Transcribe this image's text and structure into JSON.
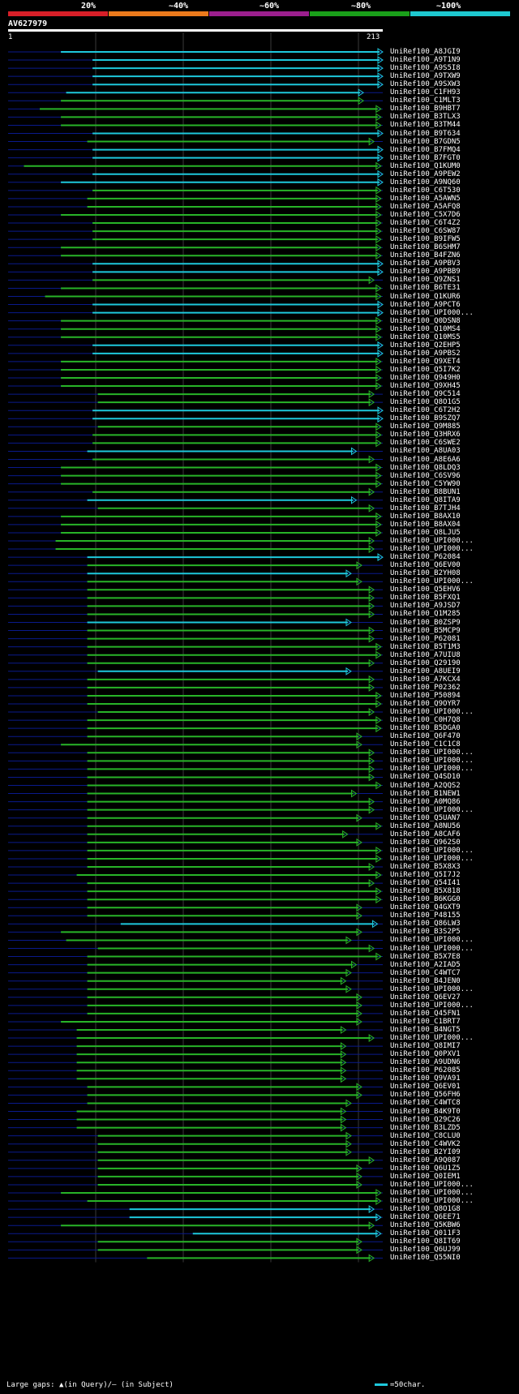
{
  "scale": {
    "labels": [
      "20%",
      "~40%",
      "~60%",
      "~80%",
      "~100%"
    ],
    "colors": [
      "#d81f28",
      "#ec7a1c",
      "#9c1f8e",
      "#1aa01a",
      "#1ec8d0"
    ]
  },
  "query": {
    "id": "AV627979",
    "start": "1",
    "end": "213"
  },
  "colors": {
    "cyan": "#1ec8dc",
    "green": "#28b428",
    "navy": "#0a1a8c",
    "grid": "#3a3a3a"
  },
  "legend": {
    "left": "Large gaps: ▲(in Query)/— (in Subject)",
    "right": "=50char."
  },
  "hits": [
    {
      "label": "UniRef100_A8JGI9",
      "color": "cyan",
      "start": 30,
      "end": 213
    },
    {
      "label": "UniRef100_A9T1N9",
      "color": "cyan",
      "start": 48,
      "end": 213
    },
    {
      "label": "UniRef100_A9S5I8",
      "color": "cyan",
      "start": 48,
      "end": 213
    },
    {
      "label": "UniRef100_A9TXW9",
      "color": "cyan",
      "start": 48,
      "end": 213
    },
    {
      "label": "UniRef100_A9SXW3",
      "color": "cyan",
      "start": 48,
      "end": 213
    },
    {
      "label": "UniRef100_C1FH93",
      "color": "cyan",
      "start": 33,
      "end": 202
    },
    {
      "label": "UniRef100_C1MLT3",
      "color": "green",
      "start": 30,
      "end": 202
    },
    {
      "label": "UniRef100_B9HBT7",
      "color": "green",
      "start": 18,
      "end": 212
    },
    {
      "label": "UniRef100_B3TLX3",
      "color": "green",
      "start": 30,
      "end": 212
    },
    {
      "label": "UniRef100_B3TM44",
      "color": "green",
      "start": 30,
      "end": 212
    },
    {
      "label": "UniRef100_B9T634",
      "color": "cyan",
      "start": 48,
      "end": 213
    },
    {
      "label": "UniRef100_B7GDN5",
      "color": "green",
      "start": 45,
      "end": 208
    },
    {
      "label": "UniRef100_B7FMQ4",
      "color": "cyan",
      "start": 48,
      "end": 213
    },
    {
      "label": "UniRef100_B7FGT0",
      "color": "cyan",
      "start": 48,
      "end": 213
    },
    {
      "label": "UniRef100_Q1KUM0",
      "color": "green",
      "start": 9,
      "end": 212
    },
    {
      "label": "UniRef100_A9PEW2",
      "color": "cyan",
      "start": 48,
      "end": 213
    },
    {
      "label": "UniRef100_A9NQ60",
      "color": "cyan",
      "start": 30,
      "end": 213
    },
    {
      "label": "UniRef100_C6T530",
      "color": "green",
      "start": 48,
      "end": 212
    },
    {
      "label": "UniRef100_A5AWN5",
      "color": "green",
      "start": 45,
      "end": 212
    },
    {
      "label": "UniRef100_A5AFQ8",
      "color": "green",
      "start": 45,
      "end": 212
    },
    {
      "label": "UniRef100_C5X7D6",
      "color": "green",
      "start": 30,
      "end": 212
    },
    {
      "label": "UniRef100_C6T4Z2",
      "color": "green",
      "start": 48,
      "end": 212
    },
    {
      "label": "UniRef100_C6SW87",
      "color": "green",
      "start": 48,
      "end": 212
    },
    {
      "label": "UniRef100_B9IFW5",
      "color": "green",
      "start": 48,
      "end": 212
    },
    {
      "label": "UniRef100_B6SHM7",
      "color": "green",
      "start": 30,
      "end": 212
    },
    {
      "label": "UniRef100_B4FZN6",
      "color": "green",
      "start": 30,
      "end": 212
    },
    {
      "label": "UniRef100_A9PBV3",
      "color": "cyan",
      "start": 48,
      "end": 213
    },
    {
      "label": "UniRef100_A9PBB9",
      "color": "cyan",
      "start": 48,
      "end": 213
    },
    {
      "label": "UniRef100_Q9ZNS1",
      "color": "green",
      "start": 48,
      "end": 208
    },
    {
      "label": "UniRef100_B6TE31",
      "color": "green",
      "start": 30,
      "end": 212
    },
    {
      "label": "UniRef100_Q1KUR6",
      "color": "green",
      "start": 21,
      "end": 212
    },
    {
      "label": "UniRef100_A9PCT6",
      "color": "cyan",
      "start": 48,
      "end": 213
    },
    {
      "label": "UniRef100_UPI000...",
      "color": "cyan",
      "start": 48,
      "end": 213
    },
    {
      "label": "UniRef100_Q0DSN8",
      "color": "green",
      "start": 30,
      "end": 212
    },
    {
      "label": "UniRef100_Q10MS4",
      "color": "green",
      "start": 30,
      "end": 212
    },
    {
      "label": "UniRef100_Q10MS5",
      "color": "green",
      "start": 30,
      "end": 212
    },
    {
      "label": "UniRef100_Q2EHP5",
      "color": "cyan",
      "start": 48,
      "end": 213
    },
    {
      "label": "UniRef100_A9PBS2",
      "color": "cyan",
      "start": 48,
      "end": 213
    },
    {
      "label": "UniRef100_Q9XET4",
      "color": "green",
      "start": 30,
      "end": 212
    },
    {
      "label": "UniRef100_Q5I7K2",
      "color": "green",
      "start": 30,
      "end": 212
    },
    {
      "label": "UniRef100_Q949H0",
      "color": "green",
      "start": 30,
      "end": 212
    },
    {
      "label": "UniRef100_Q9XH45",
      "color": "green",
      "start": 30,
      "end": 212
    },
    {
      "label": "UniRef100_Q9C514",
      "color": "green",
      "start": 51,
      "end": 208
    },
    {
      "label": "UniRef100_Q8O1G5",
      "color": "green",
      "start": 51,
      "end": 208
    },
    {
      "label": "UniRef100_C6T2H2",
      "color": "cyan",
      "start": 48,
      "end": 213
    },
    {
      "label": "UniRef100_B9SZQ7",
      "color": "cyan",
      "start": 48,
      "end": 213
    },
    {
      "label": "UniRef100_Q9M885",
      "color": "green",
      "start": 51,
      "end": 212
    },
    {
      "label": "UniRef100_Q3HRX6",
      "color": "green",
      "start": 48,
      "end": 212
    },
    {
      "label": "UniRef100_C6SWE2",
      "color": "green",
      "start": 48,
      "end": 212
    },
    {
      "label": "UniRef100_A8UA03",
      "color": "cyan",
      "start": 45,
      "end": 198
    },
    {
      "label": "UniRef100_A8E6A6",
      "color": "green",
      "start": 48,
      "end": 208
    },
    {
      "label": "UniRef100_Q8LDQ3",
      "color": "green",
      "start": 30,
      "end": 212
    },
    {
      "label": "UniRef100_C6SV96",
      "color": "green",
      "start": 30,
      "end": 212
    },
    {
      "label": "UniRef100_C5YW90",
      "color": "green",
      "start": 30,
      "end": 212
    },
    {
      "label": "UniRef100_B8BUN1",
      "color": "green",
      "start": 48,
      "end": 208
    },
    {
      "label": "UniRef100_Q8ITA9",
      "color": "cyan",
      "start": 45,
      "end": 198
    },
    {
      "label": "UniRef100_B7TJH4",
      "color": "green",
      "start": 51,
      "end": 208
    },
    {
      "label": "UniRef100_B8AX10",
      "color": "green",
      "start": 30,
      "end": 212
    },
    {
      "label": "UniRef100_B8AX04",
      "color": "green",
      "start": 30,
      "end": 212
    },
    {
      "label": "UniRef100_Q8LJU5",
      "color": "green",
      "start": 30,
      "end": 212
    },
    {
      "label": "UniRef100_UPI000...",
      "color": "green",
      "start": 27,
      "end": 208
    },
    {
      "label": "UniRef100_UPI000...",
      "color": "green",
      "start": 27,
      "end": 208
    },
    {
      "label": "UniRef100_P62084",
      "color": "cyan",
      "start": 45,
      "end": 213
    },
    {
      "label": "UniRef100_Q6EV00",
      "color": "green",
      "start": 45,
      "end": 201
    },
    {
      "label": "UniRef100_B2YH08",
      "color": "cyan",
      "start": 45,
      "end": 195
    },
    {
      "label": "UniRef100_UPI000...",
      "color": "green",
      "start": 45,
      "end": 201
    },
    {
      "label": "UniRef100_Q5EHV6",
      "color": "green",
      "start": 45,
      "end": 208
    },
    {
      "label": "UniRef100_B5FXQ1",
      "color": "green",
      "start": 45,
      "end": 208
    },
    {
      "label": "UniRef100_A9JSD7",
      "color": "green",
      "start": 45,
      "end": 208
    },
    {
      "label": "UniRef100_Q1M285",
      "color": "green",
      "start": 45,
      "end": 208
    },
    {
      "label": "UniRef100_B0ZSP9",
      "color": "cyan",
      "start": 45,
      "end": 195
    },
    {
      "label": "UniRef100_B5MCP9",
      "color": "green",
      "start": 45,
      "end": 208
    },
    {
      "label": "UniRef100_P62081",
      "color": "green",
      "start": 45,
      "end": 208
    },
    {
      "label": "UniRef100_B5T1M3",
      "color": "green",
      "start": 45,
      "end": 212
    },
    {
      "label": "UniRef100_A7UIU8",
      "color": "green",
      "start": 45,
      "end": 212
    },
    {
      "label": "UniRef100_Q29190",
      "color": "green",
      "start": 45,
      "end": 208
    },
    {
      "label": "UniRef100_A8UEI9",
      "color": "cyan",
      "start": 51,
      "end": 195
    },
    {
      "label": "UniRef100_A7KCX4",
      "color": "green",
      "start": 45,
      "end": 208
    },
    {
      "label": "UniRef100_P02362",
      "color": "green",
      "start": 45,
      "end": 208
    },
    {
      "label": "UniRef100_P50894",
      "color": "green",
      "start": 45,
      "end": 212
    },
    {
      "label": "UniRef100_Q9OYR7",
      "color": "green",
      "start": 45,
      "end": 212
    },
    {
      "label": "UniRef100_UPI000...",
      "color": "green",
      "start": 51,
      "end": 208
    },
    {
      "label": "UniRef100_C0H7Q8",
      "color": "green",
      "start": 45,
      "end": 212
    },
    {
      "label": "UniRef100_B5DGA0",
      "color": "green",
      "start": 45,
      "end": 212
    },
    {
      "label": "UniRef100_Q6F470",
      "color": "green",
      "start": 45,
      "end": 201
    },
    {
      "label": "UniRef100_C1C1C8",
      "color": "green",
      "start": 30,
      "end": 201
    },
    {
      "label": "UniRef100_UPI000...",
      "color": "green",
      "start": 45,
      "end": 208
    },
    {
      "label": "UniRef100_UPI000...",
      "color": "green",
      "start": 45,
      "end": 208
    },
    {
      "label": "UniRef100_UPI000...",
      "color": "green",
      "start": 45,
      "end": 208
    },
    {
      "label": "UniRef100_Q4SD10",
      "color": "green",
      "start": 45,
      "end": 208
    },
    {
      "label": "UniRef100_A2QQS2",
      "color": "green",
      "start": 45,
      "end": 212
    },
    {
      "label": "UniRef100_B1NEW1",
      "color": "green",
      "start": 45,
      "end": 198
    },
    {
      "label": "UniRef100_A0MQ86",
      "color": "green",
      "start": 45,
      "end": 208
    },
    {
      "label": "UniRef100_UPI000...",
      "color": "green",
      "start": 45,
      "end": 208
    },
    {
      "label": "UniRef100_Q5UAN7",
      "color": "green",
      "start": 45,
      "end": 201
    },
    {
      "label": "UniRef100_A8NU56",
      "color": "green",
      "start": 45,
      "end": 212
    },
    {
      "label": "UniRef100_A8CAF6",
      "color": "green",
      "start": 45,
      "end": 193
    },
    {
      "label": "UniRef100_Q962S0",
      "color": "green",
      "start": 45,
      "end": 201
    },
    {
      "label": "UniRef100_UPI000...",
      "color": "green",
      "start": 45,
      "end": 212
    },
    {
      "label": "UniRef100_UPI000...",
      "color": "green",
      "start": 45,
      "end": 212
    },
    {
      "label": "UniRef100_B5X8X3",
      "color": "green",
      "start": 45,
      "end": 208
    },
    {
      "label": "UniRef100_Q5I7J2",
      "color": "green",
      "start": 39,
      "end": 212
    },
    {
      "label": "UniRef100_Q54I41",
      "color": "green",
      "start": 45,
      "end": 208
    },
    {
      "label": "UniRef100_B5X818",
      "color": "green",
      "start": 45,
      "end": 212
    },
    {
      "label": "UniRef100_B6KGG0",
      "color": "green",
      "start": 45,
      "end": 212
    },
    {
      "label": "UniRef100_Q4GXT9",
      "color": "green",
      "start": 45,
      "end": 201
    },
    {
      "label": "UniRef100_P48155",
      "color": "green",
      "start": 45,
      "end": 201
    },
    {
      "label": "UniRef100_Q86LW3",
      "color": "cyan",
      "start": 64,
      "end": 210
    },
    {
      "label": "UniRef100_B3S2P5",
      "color": "green",
      "start": 30,
      "end": 201
    },
    {
      "label": "UniRef100_UPI000...",
      "color": "green",
      "start": 33,
      "end": 195
    },
    {
      "label": "UniRef100_UPI000...",
      "color": "green",
      "start": 51,
      "end": 208
    },
    {
      "label": "UniRef100_B5X7E8",
      "color": "green",
      "start": 45,
      "end": 212
    },
    {
      "label": "UniRef100_A2IAD5",
      "color": "green",
      "start": 45,
      "end": 198
    },
    {
      "label": "UniRef100_C4WTC7",
      "color": "green",
      "start": 45,
      "end": 195
    },
    {
      "label": "UniRef100_B4JEN0",
      "color": "green",
      "start": 45,
      "end": 192
    },
    {
      "label": "UniRef100_UPI000...",
      "color": "green",
      "start": 45,
      "end": 195
    },
    {
      "label": "UniRef100_Q6EV27",
      "color": "green",
      "start": 45,
      "end": 201
    },
    {
      "label": "UniRef100_UPI000...",
      "color": "green",
      "start": 45,
      "end": 201
    },
    {
      "label": "UniRef100_Q45FN1",
      "color": "green",
      "start": 45,
      "end": 201
    },
    {
      "label": "UniRef100_C1BRT7",
      "color": "green",
      "start": 30,
      "end": 201
    },
    {
      "label": "UniRef100_B4NGT5",
      "color": "green",
      "start": 39,
      "end": 192
    },
    {
      "label": "UniRef100_UPI000...",
      "color": "green",
      "start": 39,
      "end": 208
    },
    {
      "label": "UniRef100_Q8IMI7",
      "color": "green",
      "start": 39,
      "end": 192
    },
    {
      "label": "UniRef100_Q0PXV1",
      "color": "green",
      "start": 39,
      "end": 192
    },
    {
      "label": "UniRef100_A9UDN6",
      "color": "green",
      "start": 39,
      "end": 192
    },
    {
      "label": "UniRef100_P62085",
      "color": "green",
      "start": 39,
      "end": 192
    },
    {
      "label": "UniRef100_Q9VA91",
      "color": "green",
      "start": 39,
      "end": 192
    },
    {
      "label": "UniRef100_Q6EV01",
      "color": "green",
      "start": 45,
      "end": 201
    },
    {
      "label": "UniRef100_Q56FH6",
      "color": "green",
      "start": 45,
      "end": 201
    },
    {
      "label": "UniRef100_C4WTC8",
      "color": "green",
      "start": 45,
      "end": 195
    },
    {
      "label": "UniRef100_B4K9T0",
      "color": "green",
      "start": 39,
      "end": 192
    },
    {
      "label": "UniRef100_Q29C26",
      "color": "green",
      "start": 39,
      "end": 192
    },
    {
      "label": "UniRef100_B3LZD5",
      "color": "green",
      "start": 39,
      "end": 192
    },
    {
      "label": "UniRef100_C8CLU0",
      "color": "green",
      "start": 51,
      "end": 195
    },
    {
      "label": "UniRef100_C4WVK2",
      "color": "green",
      "start": 51,
      "end": 195
    },
    {
      "label": "UniRef100_B2YI09",
      "color": "green",
      "start": 51,
      "end": 195
    },
    {
      "label": "UniRef100_A9Q087",
      "color": "green",
      "start": 51,
      "end": 208
    },
    {
      "label": "UniRef100_Q6U1Z5",
      "color": "green",
      "start": 51,
      "end": 201
    },
    {
      "label": "UniRef100_Q0IEM1",
      "color": "green",
      "start": 51,
      "end": 201
    },
    {
      "label": "UniRef100_UPI000...",
      "color": "green",
      "start": 51,
      "end": 201
    },
    {
      "label": "UniRef100_UPI000...",
      "color": "green",
      "start": 30,
      "end": 212
    },
    {
      "label": "UniRef100_UPI000...",
      "color": "green",
      "start": 45,
      "end": 212
    },
    {
      "label": "UniRef100_Q8O1G8",
      "color": "cyan",
      "start": 69,
      "end": 208
    },
    {
      "label": "UniRef100_Q6EE71",
      "color": "cyan",
      "start": 69,
      "end": 212
    },
    {
      "label": "UniRef100_Q5KBW6",
      "color": "green",
      "start": 30,
      "end": 208
    },
    {
      "label": "UniRef100_Q011F3",
      "color": "cyan",
      "start": 105,
      "end": 212
    },
    {
      "label": "UniRef100_Q8IT69",
      "color": "green",
      "start": 51,
      "end": 201
    },
    {
      "label": "UniRef100_Q6UJ99",
      "color": "green",
      "start": 51,
      "end": 201
    },
    {
      "label": "UniRef100_Q55NI0",
      "color": "green",
      "start": 79,
      "end": 208
    }
  ]
}
